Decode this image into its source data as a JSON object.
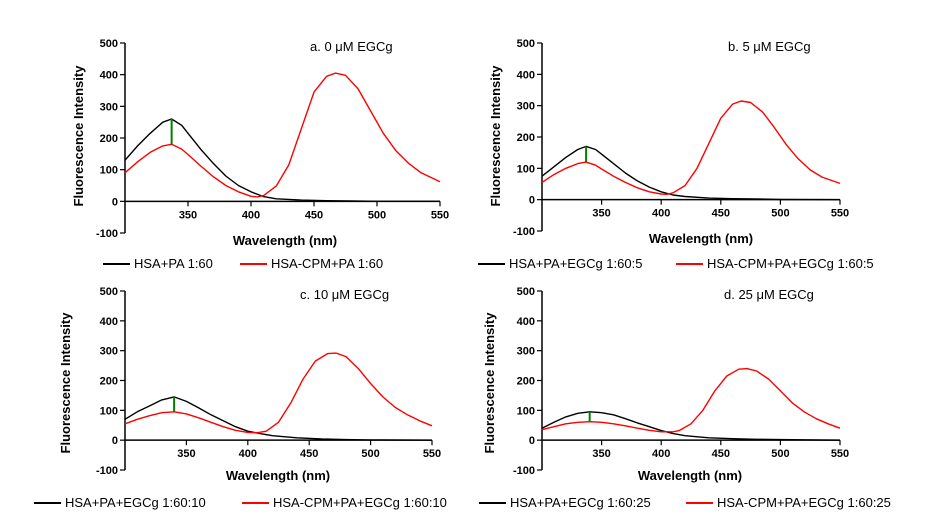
{
  "chart_data": [
    {
      "type": "line",
      "title": "a. 0 μM EGCg",
      "xlabel": "Wavelength (nm)",
      "ylabel": "Fluorescence Intensity",
      "xlim": [
        300,
        550
      ],
      "ylim": [
        -100,
        500
      ],
      "xticks": [
        350,
        400,
        450,
        500,
        550
      ],
      "yticks": [
        -100,
        0,
        100,
        200,
        300,
        400,
        500
      ],
      "grid": false,
      "legend_position": "below",
      "colors": {
        "black": "#000000",
        "red": "#ff0000",
        "marker": "#008000"
      },
      "series": [
        {
          "name": "HSA+PA 1:60",
          "color": "#000000",
          "x": [
            300,
            310,
            320,
            330,
            337,
            345,
            350,
            360,
            370,
            380,
            390,
            400,
            410,
            420,
            440,
            460,
            480,
            500,
            550
          ],
          "y": [
            130,
            175,
            215,
            250,
            260,
            240,
            215,
            165,
            120,
            80,
            50,
            30,
            15,
            8,
            4,
            2,
            1,
            0,
            0
          ]
        },
        {
          "name": "HSA-CPM+PA 1:60",
          "color": "#ff0000",
          "x": [
            300,
            310,
            320,
            330,
            337,
            345,
            350,
            360,
            370,
            380,
            390,
            400,
            405,
            410,
            420,
            430,
            440,
            450,
            460,
            467,
            475,
            485,
            495,
            505,
            515,
            525,
            535,
            550
          ],
          "y": [
            90,
            125,
            155,
            175,
            180,
            165,
            148,
            112,
            78,
            50,
            30,
            16,
            14,
            18,
            48,
            115,
            230,
            345,
            395,
            405,
            398,
            355,
            285,
            215,
            160,
            120,
            90,
            62
          ]
        }
      ],
      "marker_x": 337
    },
    {
      "type": "line",
      "title": "b. 5 μM EGCg",
      "xlabel": "Wavelength (nm)",
      "ylabel": "Fluorescence Intensity",
      "xlim": [
        300,
        550
      ],
      "ylim": [
        -100,
        500
      ],
      "xticks": [
        350,
        400,
        450,
        500,
        550
      ],
      "yticks": [
        -100,
        0,
        100,
        200,
        300,
        400,
        500
      ],
      "grid": false,
      "legend_position": "below",
      "series": [
        {
          "name": "HSA+PA+EGCg 1:60:5",
          "color": "#000000",
          "x": [
            300,
            310,
            320,
            330,
            337,
            345,
            350,
            360,
            370,
            380,
            390,
            400,
            410,
            420,
            440,
            460,
            480,
            500,
            550
          ],
          "y": [
            75,
            105,
            135,
            160,
            170,
            160,
            145,
            115,
            85,
            60,
            40,
            25,
            15,
            10,
            5,
            3,
            2,
            1,
            0
          ]
        },
        {
          "name": "HSA-CPM+PA+EGCg 1:60:5",
          "color": "#ff0000",
          "x": [
            300,
            310,
            320,
            330,
            337,
            345,
            350,
            360,
            370,
            380,
            390,
            400,
            405,
            410,
            420,
            430,
            440,
            450,
            460,
            467,
            475,
            485,
            495,
            505,
            515,
            525,
            535,
            550
          ],
          "y": [
            55,
            80,
            100,
            115,
            120,
            110,
            98,
            75,
            55,
            38,
            25,
            18,
            17,
            22,
            45,
            100,
            180,
            260,
            305,
            315,
            310,
            280,
            230,
            175,
            130,
            95,
            72,
            52
          ]
        }
      ],
      "marker_x": 337
    },
    {
      "type": "line",
      "title": "c. 10 μM EGCg",
      "xlabel": "Wavelength (nm)",
      "ylabel": "Fluorescence Intensity",
      "xlim": [
        300,
        550
      ],
      "ylim": [
        -100,
        500
      ],
      "xticks": [
        350,
        400,
        450,
        500,
        550
      ],
      "yticks": [
        -100,
        0,
        100,
        200,
        300,
        400,
        500
      ],
      "grid": false,
      "legend_position": "below",
      "series": [
        {
          "name": "HSA+PA+EGCg 1:60:10",
          "color": "#000000",
          "x": [
            300,
            310,
            320,
            330,
            340,
            350,
            360,
            370,
            380,
            390,
            400,
            410,
            420,
            440,
            460,
            480,
            500,
            550
          ],
          "y": [
            70,
            95,
            115,
            135,
            145,
            130,
            108,
            85,
            65,
            45,
            30,
            22,
            15,
            8,
            4,
            2,
            1,
            0
          ]
        },
        {
          "name": "HSA-CPM+PA+EGCg 1:60:10",
          "color": "#ff0000",
          "x": [
            300,
            310,
            320,
            330,
            340,
            350,
            360,
            370,
            380,
            390,
            400,
            408,
            415,
            425,
            435,
            445,
            455,
            465,
            472,
            480,
            490,
            500,
            510,
            520,
            530,
            540,
            550
          ],
          "y": [
            55,
            70,
            82,
            92,
            95,
            88,
            75,
            60,
            45,
            33,
            26,
            25,
            30,
            60,
            125,
            205,
            265,
            290,
            292,
            280,
            240,
            190,
            145,
            110,
            85,
            65,
            48
          ]
        }
      ],
      "marker_x": 340
    },
    {
      "type": "line",
      "title": "d. 25 μM EGCg",
      "xlabel": "Wavelength (nm)",
      "ylabel": "Fluorescence Intensity",
      "xlim": [
        300,
        550
      ],
      "ylim": [
        -100,
        500
      ],
      "xticks": [
        350,
        400,
        450,
        500,
        550
      ],
      "yticks": [
        -100,
        0,
        100,
        200,
        300,
        400,
        500
      ],
      "grid": false,
      "legend_position": "below",
      "series": [
        {
          "name": "HSA+PA+EGCg 1:60:25",
          "color": "#000000",
          "x": [
            300,
            310,
            320,
            330,
            340,
            350,
            360,
            370,
            380,
            390,
            400,
            410,
            420,
            440,
            460,
            480,
            500,
            550
          ],
          "y": [
            40,
            60,
            78,
            90,
            95,
            92,
            85,
            72,
            58,
            45,
            32,
            22,
            15,
            8,
            5,
            3,
            2,
            0
          ]
        },
        {
          "name": "HSA-CPM+PA+EGCg 1:60:25",
          "color": "#ff0000",
          "x": [
            300,
            310,
            320,
            330,
            340,
            350,
            360,
            370,
            380,
            390,
            400,
            410,
            415,
            425,
            435,
            445,
            455,
            465,
            472,
            480,
            490,
            500,
            510,
            520,
            530,
            540,
            550
          ],
          "y": [
            35,
            45,
            55,
            60,
            62,
            60,
            55,
            48,
            40,
            33,
            28,
            28,
            32,
            55,
            100,
            165,
            215,
            238,
            240,
            232,
            205,
            165,
            125,
            95,
            72,
            55,
            40
          ]
        }
      ],
      "marker_x": 340
    }
  ]
}
